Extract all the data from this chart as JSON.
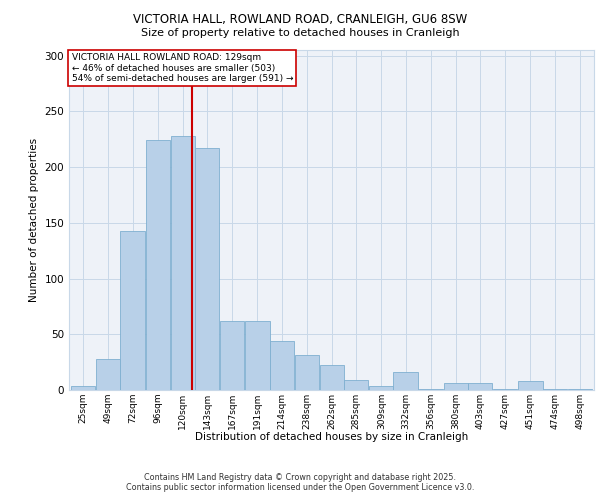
{
  "title_line1": "VICTORIA HALL, ROWLAND ROAD, CRANLEIGH, GU6 8SW",
  "title_line2": "Size of property relative to detached houses in Cranleigh",
  "xlabel": "Distribution of detached houses by size in Cranleigh",
  "ylabel": "Number of detached properties",
  "categories": [
    "25sqm",
    "49sqm",
    "72sqm",
    "96sqm",
    "120sqm",
    "143sqm",
    "167sqm",
    "191sqm",
    "214sqm",
    "238sqm",
    "262sqm",
    "285sqm",
    "309sqm",
    "332sqm",
    "356sqm",
    "380sqm",
    "403sqm",
    "427sqm",
    "451sqm",
    "474sqm",
    "498sqm"
  ],
  "values": [
    4,
    28,
    143,
    224,
    228,
    217,
    62,
    62,
    44,
    31,
    22,
    9,
    4,
    16,
    1,
    6,
    6,
    1,
    8,
    1,
    1
  ],
  "bar_color": "#b8d0e8",
  "bar_edge_color": "#7fafd0",
  "grid_color": "#c8d8e8",
  "background_color": "#eef2f8",
  "ref_line_x": 129,
  "ref_line_color": "#cc0000",
  "annotation_text": "VICTORIA HALL ROWLAND ROAD: 129sqm\n← 46% of detached houses are smaller (503)\n54% of semi-detached houses are larger (591) →",
  "annotation_box_color": "#cc0000",
  "footer_text": "Contains HM Land Registry data © Crown copyright and database right 2025.\nContains public sector information licensed under the Open Government Licence v3.0.",
  "ylim": [
    0,
    305
  ],
  "yticks": [
    0,
    50,
    100,
    150,
    200,
    250,
    300
  ],
  "bin_centers": [
    25,
    49,
    72,
    96,
    120,
    143,
    167,
    191,
    214,
    238,
    262,
    285,
    309,
    332,
    356,
    380,
    403,
    427,
    451,
    474,
    498
  ],
  "bin_width": 23
}
